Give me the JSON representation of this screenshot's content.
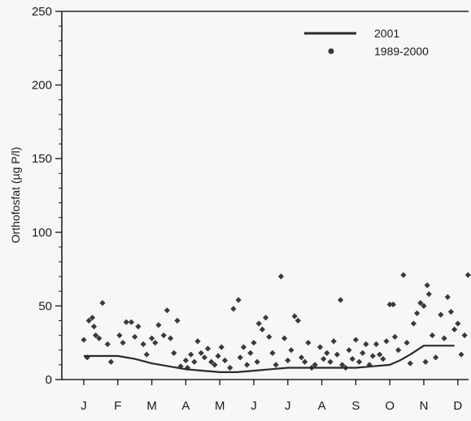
{
  "chart_data": {
    "type": "scatter",
    "ylabel": "Orthofosfat (µg P/l)",
    "xlabel": "",
    "ylim": [
      0,
      250
    ],
    "yticks": [
      0,
      50,
      100,
      150,
      200,
      250
    ],
    "months": [
      "J",
      "F",
      "M",
      "A",
      "M",
      "J",
      "J",
      "A",
      "S",
      "O",
      "N",
      "D"
    ],
    "legend_position": "top-right",
    "series": [
      {
        "name": "2001",
        "kind": "line",
        "color": "#2a2a2a",
        "points": [
          [
            0.0,
            16
          ],
          [
            0.5,
            16
          ],
          [
            1.0,
            16
          ],
          [
            1.5,
            14
          ],
          [
            2.0,
            11
          ],
          [
            2.5,
            9
          ],
          [
            3.0,
            7
          ],
          [
            3.5,
            6
          ],
          [
            4.0,
            5
          ],
          [
            4.5,
            5
          ],
          [
            5.0,
            6
          ],
          [
            5.5,
            7
          ],
          [
            6.0,
            8
          ],
          [
            6.5,
            8
          ],
          [
            7.0,
            8
          ],
          [
            7.5,
            8
          ],
          [
            8.0,
            8
          ],
          [
            8.5,
            9
          ],
          [
            9.0,
            10
          ],
          [
            9.3,
            13
          ],
          [
            9.6,
            17
          ],
          [
            10.0,
            23
          ],
          [
            10.5,
            23
          ],
          [
            10.9,
            23
          ]
        ]
      },
      {
        "name": "1989-2000",
        "kind": "scatter",
        "color": "#3a3a3a",
        "points": [
          [
            0.0,
            27
          ],
          [
            0.1,
            15
          ],
          [
            0.15,
            40
          ],
          [
            0.25,
            42
          ],
          [
            0.3,
            36
          ],
          [
            0.35,
            30
          ],
          [
            0.45,
            28
          ],
          [
            0.55,
            52
          ],
          [
            0.7,
            24
          ],
          [
            0.8,
            12
          ],
          [
            1.05,
            30
          ],
          [
            1.15,
            25
          ],
          [
            1.25,
            39
          ],
          [
            1.4,
            39
          ],
          [
            1.5,
            29
          ],
          [
            1.6,
            36
          ],
          [
            1.75,
            24
          ],
          [
            1.85,
            17
          ],
          [
            2.0,
            28
          ],
          [
            2.1,
            25
          ],
          [
            2.2,
            37
          ],
          [
            2.35,
            30
          ],
          [
            2.45,
            47
          ],
          [
            2.55,
            28
          ],
          [
            2.65,
            18
          ],
          [
            2.75,
            40
          ],
          [
            2.85,
            9
          ],
          [
            3.0,
            13
          ],
          [
            3.05,
            8
          ],
          [
            3.15,
            17
          ],
          [
            3.25,
            12
          ],
          [
            3.35,
            26
          ],
          [
            3.45,
            18
          ],
          [
            3.55,
            15
          ],
          [
            3.65,
            21
          ],
          [
            3.75,
            12
          ],
          [
            3.85,
            10
          ],
          [
            3.95,
            16
          ],
          [
            4.05,
            22
          ],
          [
            4.15,
            13
          ],
          [
            4.3,
            8
          ],
          [
            4.4,
            48
          ],
          [
            4.55,
            54
          ],
          [
            4.6,
            15
          ],
          [
            4.7,
            22
          ],
          [
            4.8,
            10
          ],
          [
            4.9,
            18
          ],
          [
            5.0,
            25
          ],
          [
            5.1,
            12
          ],
          [
            5.15,
            38
          ],
          [
            5.25,
            34
          ],
          [
            5.35,
            42
          ],
          [
            5.45,
            29
          ],
          [
            5.55,
            18
          ],
          [
            5.65,
            10
          ],
          [
            5.8,
            70
          ],
          [
            5.9,
            28
          ],
          [
            6.0,
            13
          ],
          [
            6.1,
            20
          ],
          [
            6.2,
            43
          ],
          [
            6.3,
            40
          ],
          [
            6.4,
            15
          ],
          [
            6.5,
            12
          ],
          [
            6.6,
            25
          ],
          [
            6.7,
            8
          ],
          [
            6.8,
            10
          ],
          [
            6.95,
            22
          ],
          [
            7.05,
            14
          ],
          [
            7.15,
            18
          ],
          [
            7.25,
            12
          ],
          [
            7.35,
            26
          ],
          [
            7.45,
            17
          ],
          [
            7.55,
            54
          ],
          [
            7.6,
            10
          ],
          [
            7.7,
            8
          ],
          [
            7.8,
            20
          ],
          [
            7.9,
            14
          ],
          [
            8.0,
            27
          ],
          [
            8.1,
            12
          ],
          [
            8.2,
            18
          ],
          [
            8.3,
            24
          ],
          [
            8.4,
            10
          ],
          [
            8.5,
            16
          ],
          [
            8.6,
            24
          ],
          [
            8.7,
            17
          ],
          [
            8.8,
            14
          ],
          [
            8.9,
            26
          ],
          [
            9.0,
            51
          ],
          [
            9.1,
            51
          ],
          [
            9.15,
            29
          ],
          [
            9.25,
            20
          ],
          [
            9.4,
            71
          ],
          [
            9.5,
            25
          ],
          [
            9.6,
            11
          ],
          [
            9.7,
            38
          ],
          [
            9.8,
            45
          ],
          [
            9.9,
            52
          ],
          [
            10.0,
            50
          ],
          [
            10.05,
            12
          ],
          [
            10.1,
            64
          ],
          [
            10.15,
            58
          ],
          [
            10.25,
            30
          ],
          [
            10.35,
            15
          ],
          [
            10.5,
            44
          ],
          [
            10.6,
            28
          ],
          [
            10.7,
            56
          ],
          [
            10.8,
            46
          ],
          [
            10.9,
            34
          ],
          [
            11.0,
            38
          ],
          [
            11.1,
            17
          ],
          [
            11.2,
            30
          ],
          [
            11.3,
            71
          ]
        ]
      }
    ]
  }
}
